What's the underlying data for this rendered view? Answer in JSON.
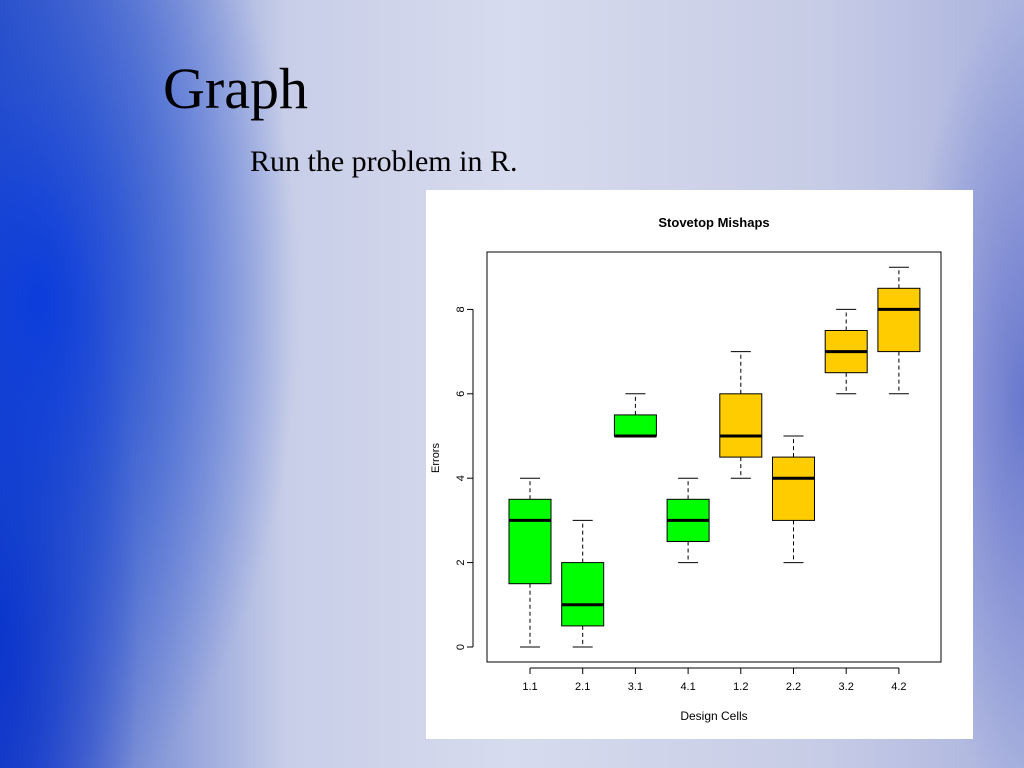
{
  "slide": {
    "title": "Graph",
    "subtitle": "Run the problem in R."
  },
  "chart_data": {
    "type": "boxplot",
    "title": "Stovetop Mishaps",
    "xlabel": "Design Cells",
    "ylabel": "Errors",
    "ylim": [
      0,
      9
    ],
    "yticks": [
      "0",
      "2",
      "4",
      "6",
      "8"
    ],
    "grid": false,
    "categories": [
      "1.1",
      "2.1",
      "3.1",
      "4.1",
      "1.2",
      "2.2",
      "3.2",
      "4.2"
    ],
    "colors": [
      "#00ff00",
      "#00ff00",
      "#00ff00",
      "#00ff00",
      "#ffcc00",
      "#ffcc00",
      "#ffcc00",
      "#ffcc00"
    ],
    "boxes": [
      {
        "min": 0,
        "q1": 1.5,
        "median": 3,
        "q3": 3.5,
        "max": 4
      },
      {
        "min": 0,
        "q1": 0.5,
        "median": 1,
        "q3": 2,
        "max": 3
      },
      {
        "min": 5,
        "q1": 5,
        "median": 5,
        "q3": 5.5,
        "max": 6
      },
      {
        "min": 2,
        "q1": 2.5,
        "median": 3,
        "q3": 3.5,
        "max": 4
      },
      {
        "min": 4,
        "q1": 4.5,
        "median": 5,
        "q3": 6,
        "max": 7
      },
      {
        "min": 2,
        "q1": 3,
        "median": 4,
        "q3": 4.5,
        "max": 5
      },
      {
        "min": 6,
        "q1": 6.5,
        "median": 7,
        "q3": 7.5,
        "max": 8
      },
      {
        "min": 6,
        "q1": 7,
        "median": 8,
        "q3": 8.5,
        "max": 9
      }
    ]
  }
}
